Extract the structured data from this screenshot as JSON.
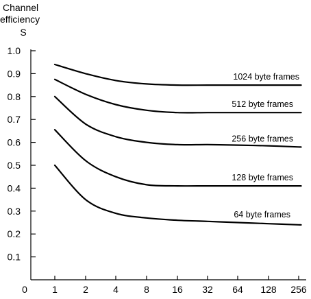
{
  "chart_data": {
    "type": "line",
    "ylabel_lines": [
      "Channel",
      "efficiency",
      "S"
    ],
    "xlabel": "",
    "x_ticks": [
      "0",
      "1",
      "2",
      "4",
      "8",
      "16",
      "32",
      "64",
      "128",
      "256"
    ],
    "y_ticks": [
      "0.1",
      "0.2",
      "0.3",
      "0.4",
      "0.5",
      "0.6",
      "0.7",
      "0.8",
      "0.9",
      "1.0"
    ],
    "ylim": [
      0,
      1.0
    ],
    "grid": false,
    "legend": "inline labels at right",
    "x": [
      1,
      2,
      4,
      8,
      16,
      32,
      64,
      128,
      256
    ],
    "series": [
      {
        "name": "1024 byte frames",
        "values": [
          0.94,
          0.9,
          0.87,
          0.855,
          0.85,
          0.85,
          0.85,
          0.85,
          0.85
        ]
      },
      {
        "name": "512 byte frames",
        "values": [
          0.875,
          0.81,
          0.765,
          0.74,
          0.73,
          0.73,
          0.73,
          0.73,
          0.73
        ]
      },
      {
        "name": "256 byte frames",
        "values": [
          0.8,
          0.68,
          0.625,
          0.6,
          0.59,
          0.59,
          0.588,
          0.585,
          0.58
        ]
      },
      {
        "name": "128 byte frames",
        "values": [
          0.655,
          0.52,
          0.45,
          0.415,
          0.41,
          0.41,
          0.41,
          0.41,
          0.41
        ]
      },
      {
        "name": "64 byte frames",
        "values": [
          0.5,
          0.35,
          0.29,
          0.27,
          0.26,
          0.255,
          0.25,
          0.245,
          0.24
        ]
      }
    ]
  }
}
